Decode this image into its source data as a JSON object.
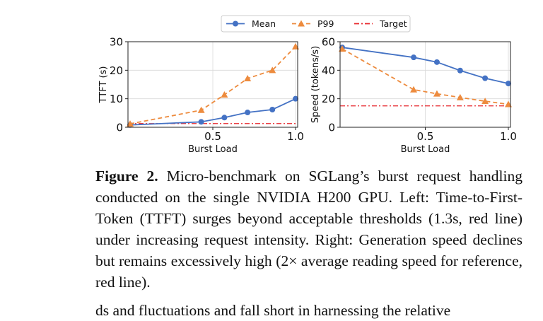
{
  "figure": {
    "legend": [
      {
        "label": "Mean",
        "color": "#4472c4",
        "style": "solid",
        "marker": "circle"
      },
      {
        "label": "P99",
        "color": "#ed8b3e",
        "style": "dashed",
        "marker": "triangle"
      },
      {
        "label": "Target",
        "color": "#e8262b",
        "style": "dashdot",
        "marker": "none"
      }
    ],
    "caption_label": "Figure 2.",
    "caption_text": " Micro-benchmark on SGLang’s burst request han­dling conducted on the single NVIDIA H200 GPU. Left: Time-to-First-Token (TTFT) surges beyond acceptable thresholds (1.3s, red line) under increasing request intensity. Right: Gen­eration speed declines but remains excessively high (2× av­erage reading speed for reference, red line).",
    "next_text_fragment": "ds and fluctuations and fall short in harnessing the relative"
  },
  "chart_data": [
    {
      "type": "line",
      "xlabel": "Burst Load",
      "ylabel": "TTFT (s)",
      "xlim": [
        0.0,
        1.0
      ],
      "ylim": [
        0,
        30
      ],
      "xticks": [
        "0.5",
        "1.0"
      ],
      "xtick_values": [
        0.5,
        1.0
      ],
      "yticks": [
        "0",
        "10",
        "20",
        "30"
      ],
      "ytick_values": [
        0,
        10,
        20,
        30
      ],
      "grid": true,
      "series": [
        {
          "name": "Mean",
          "x": [
            0.0,
            0.43,
            0.57,
            0.71,
            0.86,
            1.0
          ],
          "values": [
            0.8,
            1.9,
            3.4,
            5.2,
            6.2,
            10.0
          ]
        },
        {
          "name": "P99",
          "x": [
            0.0,
            0.43,
            0.57,
            0.71,
            0.86,
            1.0
          ],
          "values": [
            1.2,
            6.0,
            11.4,
            17.1,
            20.0,
            28.3
          ]
        }
      ],
      "target": {
        "name": "Target",
        "value": 1.3
      }
    },
    {
      "type": "line",
      "xlabel": "Burst Load",
      "ylabel": "Speed (tokens/s)",
      "xlim": [
        0.0,
        1.0
      ],
      "ylim": [
        0,
        60
      ],
      "xticks": [
        "0.5",
        "1.0"
      ],
      "xtick_values": [
        0.5,
        1.0
      ],
      "yticks": [
        "0",
        "20",
        "40",
        "60"
      ],
      "ytick_values": [
        0,
        20,
        40,
        60
      ],
      "grid": true,
      "series": [
        {
          "name": "Mean",
          "x": [
            0.0,
            0.43,
            0.57,
            0.71,
            0.86,
            1.0
          ],
          "values": [
            56.0,
            49.0,
            45.7,
            39.8,
            34.4,
            30.7
          ]
        },
        {
          "name": "P99",
          "x": [
            0.0,
            0.43,
            0.57,
            0.71,
            0.86,
            1.0
          ],
          "values": [
            55.0,
            26.4,
            23.5,
            20.9,
            18.3,
            16.1
          ]
        }
      ],
      "target": {
        "name": "Target",
        "value": 15.0
      }
    }
  ]
}
